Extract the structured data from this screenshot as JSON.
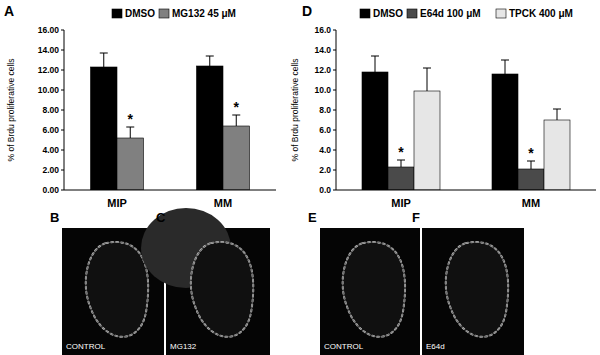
{
  "chart_data": [
    {
      "type": "bar",
      "title": "A",
      "y_label": "% of Brdu proliferative cells",
      "categories": [
        "MIP",
        "MM"
      ],
      "series": [
        {
          "name": "DMSO",
          "color": "#000000",
          "values": [
            12.3,
            12.4
          ],
          "errors": [
            1.4,
            1.0
          ],
          "significance": [
            null,
            null
          ]
        },
        {
          "name": "MG132 45 μM",
          "color": "#808080",
          "values": [
            5.2,
            6.4
          ],
          "errors": [
            1.1,
            1.1
          ],
          "significance": [
            "*",
            "*"
          ]
        }
      ],
      "ylim": [
        0,
        16
      ],
      "yticks": [
        {
          "value": 0,
          "label": "0.00"
        },
        {
          "value": 2,
          "label": "2.00"
        },
        {
          "value": 4,
          "label": "4.00"
        },
        {
          "value": 6,
          "label": "6.00"
        },
        {
          "value": 8,
          "label": "8.00"
        },
        {
          "value": 10,
          "label": "10.00"
        },
        {
          "value": 12,
          "label": "12.00"
        },
        {
          "value": 14,
          "label": "14.00"
        },
        {
          "value": 16,
          "label": "16.00"
        }
      ],
      "grid": false,
      "legend": "top"
    },
    {
      "type": "bar",
      "title": "D",
      "y_label": "% of Brdu proliferative cells",
      "categories": [
        "MIP",
        "MM"
      ],
      "series": [
        {
          "name": "DMSO",
          "color": "#000000",
          "values": [
            11.8,
            11.6
          ],
          "errors": [
            1.6,
            1.4
          ],
          "significance": [
            null,
            null
          ]
        },
        {
          "name": "E64d 100 μM",
          "color": "#4a4a4a",
          "values": [
            2.3,
            2.1
          ],
          "errors": [
            0.7,
            0.8
          ],
          "significance": [
            "*",
            "*"
          ]
        },
        {
          "name": "TPCK 400 μM",
          "color": "#e6e6e6",
          "values": [
            9.9,
            7.0
          ],
          "errors": [
            2.3,
            1.1
          ],
          "significance": [
            null,
            null
          ]
        }
      ],
      "ylim": [
        0,
        16
      ],
      "yticks": [
        {
          "value": 0,
          "label": "0.0"
        },
        {
          "value": 2,
          "label": "2.0"
        },
        {
          "value": 4,
          "label": "4.0"
        },
        {
          "value": 6,
          "label": "6.0"
        },
        {
          "value": 8,
          "label": "8.0"
        },
        {
          "value": 10,
          "label": "10.0"
        },
        {
          "value": 12,
          "label": "12.0"
        },
        {
          "value": 14,
          "label": "14.0"
        },
        {
          "value": 16,
          "label": "16.0"
        }
      ],
      "grid": false,
      "legend": "top"
    }
  ],
  "images": [
    {
      "panel": "B",
      "label": "CONTROL"
    },
    {
      "panel": "C",
      "label": "MG132"
    },
    {
      "panel": "E",
      "label": "CONTROL"
    },
    {
      "panel": "F",
      "label": "E64d"
    }
  ]
}
